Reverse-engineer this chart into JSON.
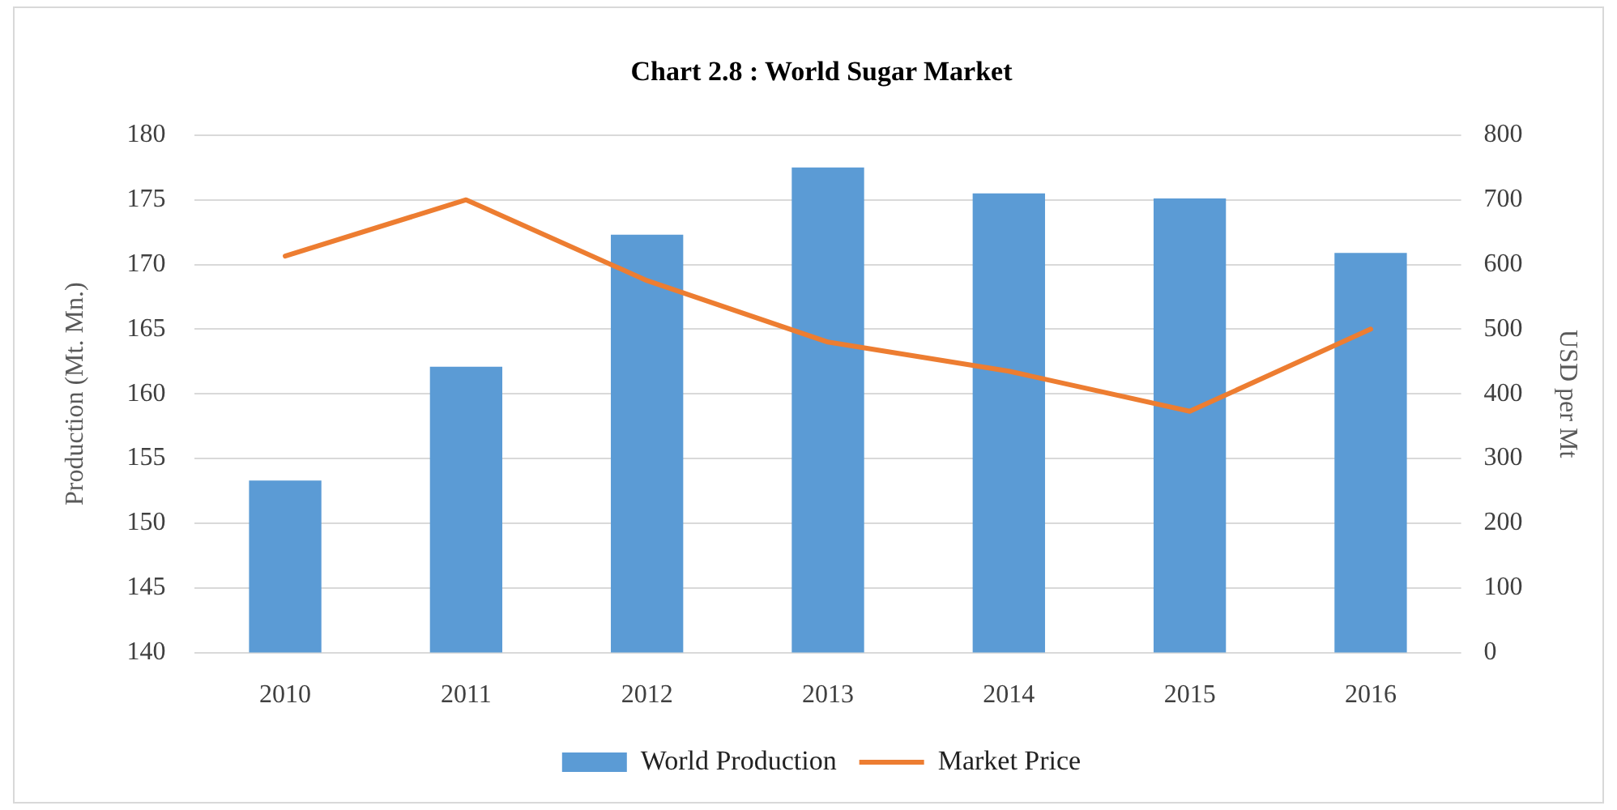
{
  "chart_data": {
    "type": "bar",
    "title": "Chart 2.8 : World Sugar Market",
    "ylabel": "Production (Mt. Mn.)",
    "y2label": "USD per Mt",
    "categories": [
      "2010",
      "2011",
      "2012",
      "2013",
      "2014",
      "2015",
      "2016"
    ],
    "series": [
      {
        "name": "World Production",
        "color": "#5b9bd5",
        "values": [
          153.3,
          162.1,
          172.3,
          177.5,
          175.5,
          175.1,
          170.9
        ]
      },
      {
        "name": "Market Price",
        "type": "line",
        "axis": "y2",
        "color": "#ed7d31",
        "values": [
          613,
          700,
          575,
          480,
          435,
          373,
          500
        ]
      }
    ],
    "ylim": [
      140,
      180
    ],
    "yticks": [
      140,
      145,
      150,
      155,
      160,
      165,
      170,
      175,
      180
    ],
    "y2lim": [
      0,
      800
    ],
    "y2ticks": [
      0,
      100,
      200,
      300,
      400,
      500,
      600,
      700,
      800
    ],
    "grid": "y",
    "legend": "bottom",
    "marker": "none"
  }
}
